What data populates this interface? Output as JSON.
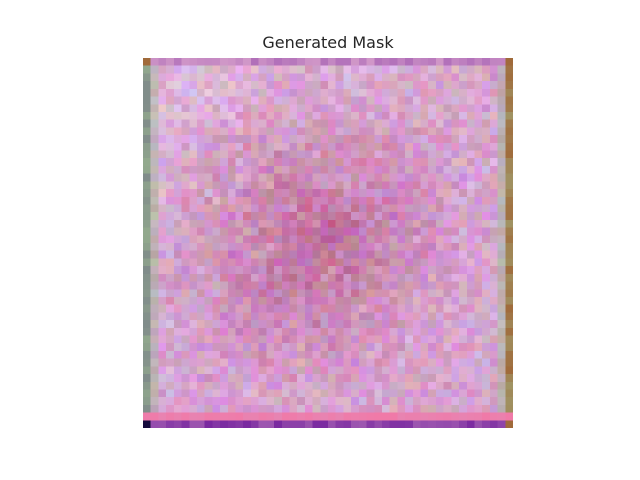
{
  "figure": {
    "title": "Generated Mask"
  },
  "image": {
    "kind": "pixelated-noise-mask",
    "grid": 48,
    "palette": {
      "base_pink": "#d39bc9",
      "center_rose": "#b65a8a",
      "light_lavender": "#e6c9e8",
      "edge_green": "#9fbf8f",
      "edge_gray": "#7f8a8a",
      "bottom_pink": "#f07aa8",
      "bottom_purple": "#7a2aa0",
      "corner_brown": "#a06a3a"
    }
  }
}
